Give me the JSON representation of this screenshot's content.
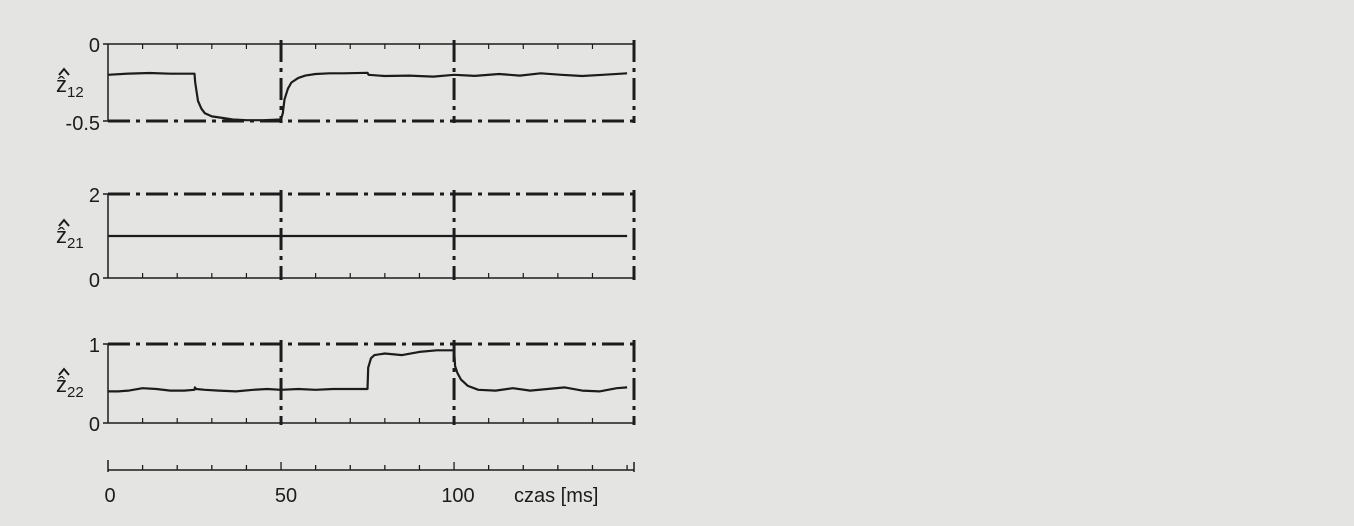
{
  "colors": {
    "background": "#e4e5e3",
    "ink": "#1c1c1c"
  },
  "chart_data": [
    {
      "type": "line",
      "ylabel": "ẑ",
      "ylabel_subscript": "12",
      "ylim": [
        -0.5,
        0
      ],
      "y_ticks": [
        "0",
        "-0.5"
      ],
      "xlim": [
        0,
        152
      ],
      "grid": "dash-dot vertical lines at 50, 100, 150; dash-dot horizontal line at lower limit",
      "series": [
        {
          "x": [
            0,
            6,
            12,
            18,
            25,
            25.2,
            26,
            27,
            28,
            30,
            33,
            36,
            40,
            45,
            50,
            50.5,
            51,
            52,
            53,
            55,
            57,
            60,
            64,
            68,
            75,
            75.3,
            80,
            87,
            94,
            100,
            106,
            113,
            119,
            125,
            131,
            137,
            143,
            150
          ],
          "y": [
            -0.2,
            -0.192,
            -0.188,
            -0.193,
            -0.193,
            -0.25,
            -0.37,
            -0.42,
            -0.45,
            -0.47,
            -0.48,
            -0.49,
            -0.495,
            -0.495,
            -0.49,
            -0.45,
            -0.36,
            -0.29,
            -0.25,
            -0.22,
            -0.205,
            -0.195,
            -0.19,
            -0.19,
            -0.187,
            -0.2,
            -0.208,
            -0.205,
            -0.212,
            -0.2,
            -0.207,
            -0.195,
            -0.205,
            -0.19,
            -0.2,
            -0.208,
            -0.2,
            -0.19
          ]
        }
      ]
    },
    {
      "type": "line",
      "ylabel": "ẑ",
      "ylabel_subscript": "21",
      "ylim": [
        0,
        2
      ],
      "y_ticks": [
        "2",
        "0"
      ],
      "xlim": [
        0,
        152
      ],
      "grid": "dash-dot vertical lines at 50, 100, 150; dash-dot horizontal line at upper limit",
      "series": [
        {
          "x": [
            0,
            150
          ],
          "y": [
            1,
            1
          ]
        }
      ]
    },
    {
      "type": "line",
      "ylabel": "ẑ",
      "ylabel_subscript": "22",
      "ylim": [
        0,
        1
      ],
      "y_ticks": [
        "1",
        "0"
      ],
      "xlim": [
        0,
        152
      ],
      "grid": "dash-dot vertical lines at 50, 100, 150; dash-dot horizontal line at upper limit",
      "series": [
        {
          "x": [
            0,
            3,
            6,
            10,
            14,
            18,
            22,
            25,
            25.1,
            25.5,
            28,
            32,
            37,
            42,
            46,
            50,
            55,
            60,
            65,
            70,
            75,
            75.2,
            76,
            77,
            80,
            85,
            90,
            95,
            100,
            100.3,
            101,
            102,
            104,
            107,
            112,
            117,
            122,
            127,
            132,
            137,
            142,
            147,
            150
          ],
          "y": [
            0.4,
            0.4,
            0.41,
            0.44,
            0.43,
            0.41,
            0.41,
            0.42,
            0.45,
            0.43,
            0.42,
            0.41,
            0.4,
            0.42,
            0.43,
            0.42,
            0.43,
            0.42,
            0.43,
            0.43,
            0.43,
            0.7,
            0.82,
            0.86,
            0.88,
            0.86,
            0.9,
            0.92,
            0.92,
            0.72,
            0.63,
            0.55,
            0.47,
            0.42,
            0.41,
            0.44,
            0.41,
            0.43,
            0.45,
            0.41,
            0.4,
            0.44,
            0.45
          ]
        }
      ]
    }
  ],
  "x_axis": {
    "xlim": [
      0,
      152
    ],
    "tick_values": [
      0,
      50,
      100
    ],
    "tick_labels": [
      "0",
      "50",
      "100"
    ],
    "minor_step": 10,
    "label": "czas [ms]"
  }
}
